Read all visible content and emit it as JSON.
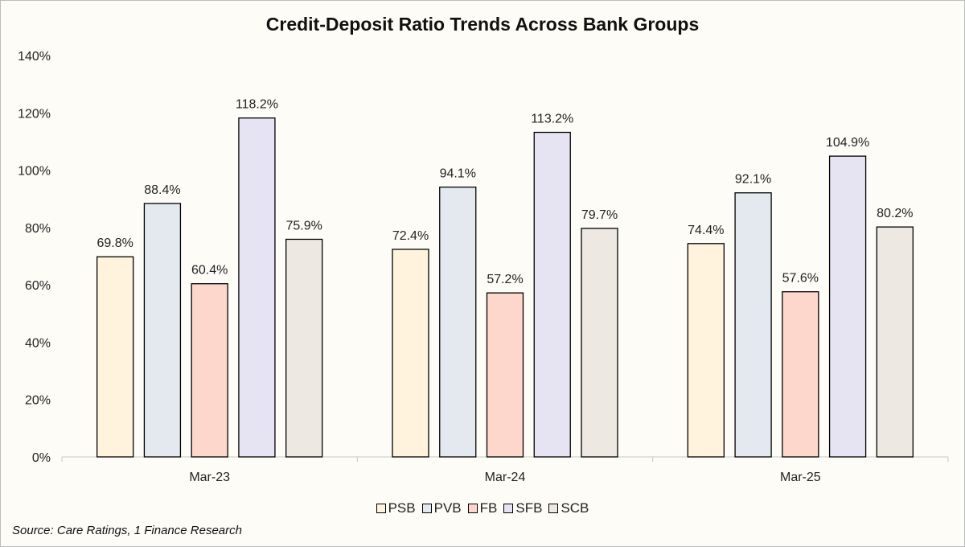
{
  "chart_data": {
    "type": "bar",
    "title": "Credit-Deposit Ratio Trends Across Bank Groups",
    "categories": [
      "Mar-23",
      "Mar-24",
      "Mar-25"
    ],
    "series": [
      {
        "name": "PSB",
        "values": [
          69.8,
          72.4,
          74.4
        ],
        "color": "#fff3dd"
      },
      {
        "name": "PVB",
        "values": [
          88.4,
          94.1,
          92.1
        ],
        "color": "#e3e9ee"
      },
      {
        "name": "FB",
        "values": [
          60.4,
          57.2,
          57.6
        ],
        "color": "#fdd7cc"
      },
      {
        "name": "SFB",
        "values": [
          118.2,
          113.2,
          104.9
        ],
        "color": "#e6e4f3"
      },
      {
        "name": "SCB",
        "values": [
          75.9,
          79.7,
          80.2
        ],
        "color": "#ede8e1"
      }
    ],
    "ylim": [
      0,
      140
    ],
    "yticks": [
      0,
      20,
      40,
      60,
      80,
      100,
      120,
      140
    ],
    "ytick_labels": [
      "0%",
      "20%",
      "40%",
      "60%",
      "80%",
      "100%",
      "120%",
      "140%"
    ],
    "data_labels": [
      [
        "69.8%",
        "72.4%",
        "74.4%"
      ],
      [
        "88.4%",
        "94.1%",
        "92.1%"
      ],
      [
        "60.4%",
        "57.2%",
        "57.6%"
      ],
      [
        "118.2%",
        "113.2%",
        "104.9%"
      ],
      [
        "75.9%",
        "79.7%",
        "80.2%"
      ]
    ],
    "grid": false,
    "legend_position": "bottom",
    "source": "Source: Care Ratings, 1 Finance Research"
  }
}
